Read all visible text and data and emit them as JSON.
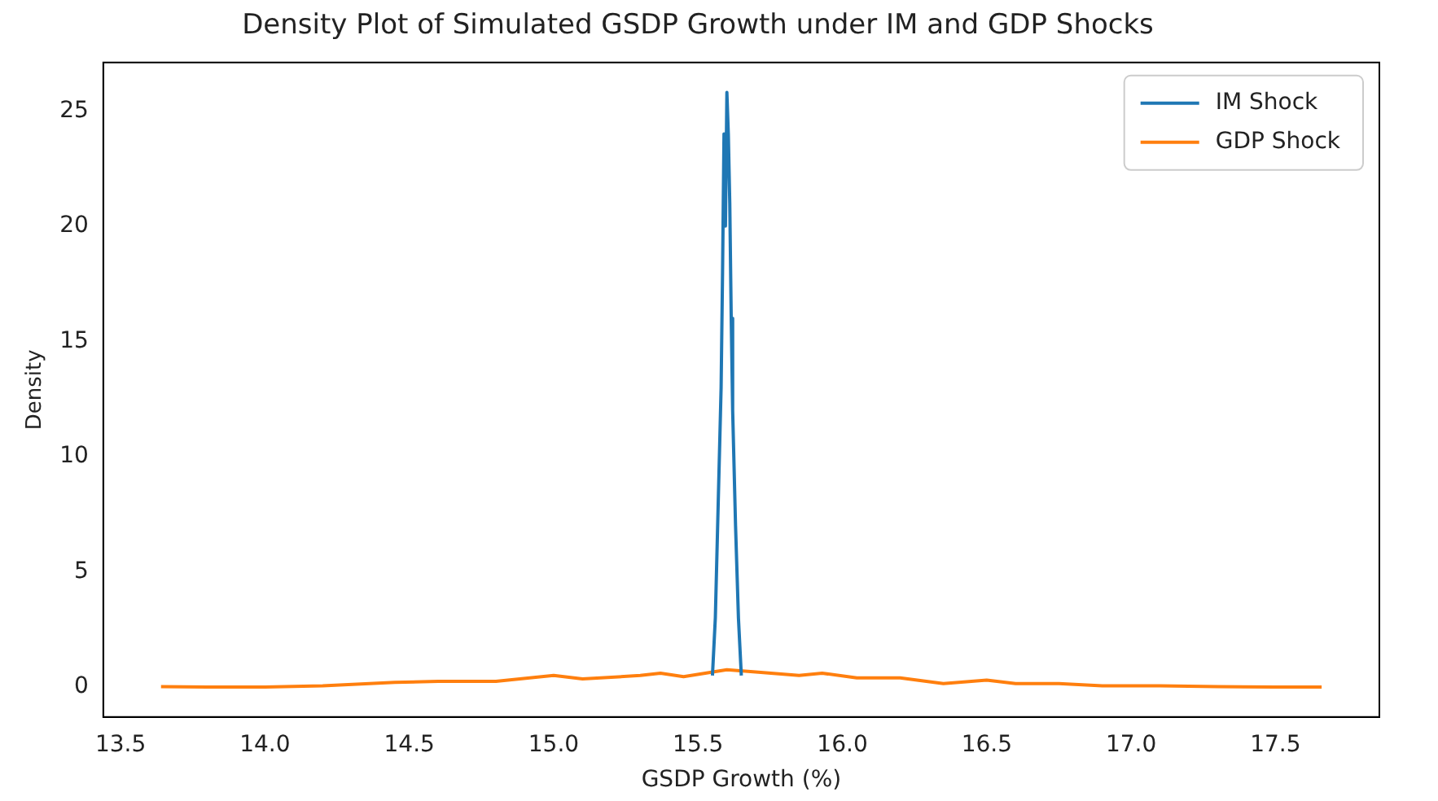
{
  "chart_data": {
    "type": "line",
    "title": "Density Plot of Simulated GSDP Growth under IM and GDP Shocks",
    "xlabel": "GSDP Growth (%)",
    "ylabel": "Density",
    "xlim": [
      13.44,
      17.86
    ],
    "xticks": [
      13.5,
      {
        "value": 14,
        "label": "14.0"
      },
      14.5,
      {
        "value": 15,
        "label": "15.0"
      },
      15.5,
      {
        "value": 16,
        "label": "16.0"
      },
      16.5,
      {
        "value": 17,
        "label": "17.0"
      },
      17.5
    ],
    "ylim": [
      -1.3,
      27.1
    ],
    "yticks": [
      0,
      5,
      10,
      15,
      20,
      25
    ],
    "legend": "top right",
    "grid": false,
    "marker": "none",
    "line_style": "solid",
    "series": [
      {
        "name": "IM Shock",
        "color": "#1f77b4",
        "x": [
          15.55,
          15.56,
          15.57,
          15.58,
          15.585,
          15.59,
          15.595,
          15.6,
          15.605,
          15.61,
          15.615,
          15.62,
          15.63,
          15.64,
          15.65
        ],
        "values": [
          0.5,
          3,
          8,
          13,
          18,
          24,
          20,
          25.8,
          24,
          21,
          16,
          12,
          7,
          3,
          0.5
        ]
      },
      {
        "name": "GDP Shock",
        "color": "#ff7f0e",
        "x": [
          13.64,
          13.8,
          14.0,
          14.2,
          14.45,
          14.6,
          14.8,
          15.0,
          15.1,
          15.3,
          15.37,
          15.45,
          15.6,
          15.7,
          15.85,
          15.93,
          16.05,
          16.2,
          16.35,
          16.5,
          16.6,
          16.75,
          16.9,
          17.1,
          17.3,
          17.5,
          17.66
        ],
        "values": [
          0.02,
          0.0,
          0.0,
          0.05,
          0.2,
          0.25,
          0.25,
          0.5,
          0.35,
          0.5,
          0.6,
          0.45,
          0.75,
          0.65,
          0.5,
          0.6,
          0.4,
          0.4,
          0.15,
          0.3,
          0.15,
          0.15,
          0.05,
          0.05,
          0.02,
          0.0,
          0.0
        ]
      }
    ]
  }
}
